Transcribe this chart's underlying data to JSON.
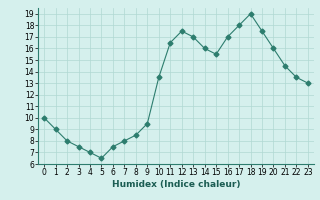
{
  "x": [
    0,
    1,
    2,
    3,
    4,
    5,
    6,
    7,
    8,
    9,
    10,
    11,
    12,
    13,
    14,
    15,
    16,
    17,
    18,
    19,
    20,
    21,
    22,
    23
  ],
  "y": [
    10,
    9,
    8,
    7.5,
    7,
    6.5,
    7.5,
    8,
    8.5,
    9.5,
    13.5,
    16.5,
    17.5,
    17,
    16,
    15.5,
    17,
    18,
    19,
    17.5,
    16,
    14.5,
    13.5,
    13
  ],
  "line_color": "#2d7d6e",
  "marker": "D",
  "marker_size": 2.5,
  "bg_color": "#d5f0ed",
  "grid_color": "#b0d8d3",
  "xlabel": "Humidex (Indice chaleur)",
  "xlim": [
    -0.5,
    23.5
  ],
  "ylim": [
    6,
    19.5
  ],
  "yticks": [
    6,
    7,
    8,
    9,
    10,
    11,
    12,
    13,
    14,
    15,
    16,
    17,
    18,
    19
  ],
  "xticks": [
    0,
    1,
    2,
    3,
    4,
    5,
    6,
    7,
    8,
    9,
    10,
    11,
    12,
    13,
    14,
    15,
    16,
    17,
    18,
    19,
    20,
    21,
    22,
    23
  ],
  "tick_fontsize": 5.5,
  "xlabel_fontsize": 6.5
}
